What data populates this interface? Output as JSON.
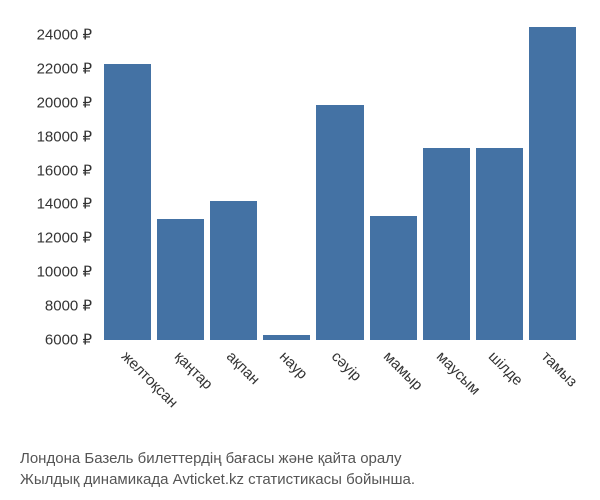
{
  "chart": {
    "type": "bar",
    "categories": [
      "желтоқсан",
      "қаңтар",
      "ақпан",
      "наур",
      "сәуір",
      "мамыр",
      "маусым",
      "шілде",
      "тамыз"
    ],
    "values": [
      21500,
      12800,
      13800,
      6300,
      19200,
      13000,
      16800,
      16800,
      23600
    ],
    "bar_color": "#4472a4",
    "ymin": 6000,
    "ymax": 24000,
    "ytick_step": 2000,
    "y_suffix": " ₽",
    "yticks": [
      "24000 ₽",
      "22000 ₽",
      "20000 ₽",
      "18000 ₽",
      "16000 ₽",
      "14000 ₽",
      "12000 ₽",
      "10000 ₽",
      "8000 ₽",
      "6000 ₽"
    ],
    "background_color": "#ffffff",
    "text_color": "#333333",
    "axis_fontsize": 15,
    "x_label_rotation": 45
  },
  "caption": {
    "line1": "Лондона Базель билеттердің бағасы және қайта оралу",
    "line2": "Жылдық динамикада Avticket.kz статистикасы бойынша."
  }
}
